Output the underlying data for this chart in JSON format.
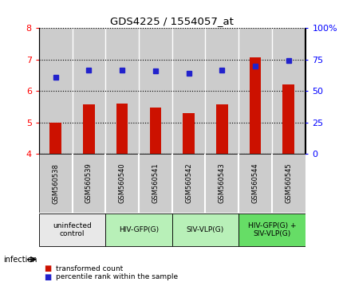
{
  "title": "GDS4225 / 1554057_at",
  "samples": [
    "GSM560538",
    "GSM560539",
    "GSM560540",
    "GSM560541",
    "GSM560542",
    "GSM560543",
    "GSM560544",
    "GSM560545"
  ],
  "bar_values": [
    4.98,
    5.57,
    5.6,
    5.47,
    5.3,
    5.57,
    7.07,
    6.22
  ],
  "dot_values": [
    6.44,
    6.67,
    6.67,
    6.63,
    6.57,
    6.67,
    6.8,
    6.97
  ],
  "ylim_left": [
    4,
    8
  ],
  "ylim_right": [
    0,
    100
  ],
  "yticks_left": [
    4,
    5,
    6,
    7,
    8
  ],
  "yticks_right": [
    0,
    25,
    50,
    75,
    100
  ],
  "ytick_labels_right": [
    "0",
    "25",
    "50",
    "75",
    "100%"
  ],
  "bar_color": "#cc1100",
  "dot_color": "#2222cc",
  "groups": [
    {
      "label": "uninfected\ncontrol",
      "start": 0,
      "end": 2,
      "color": "#e8e8e8"
    },
    {
      "label": "HIV-GFP(G)",
      "start": 2,
      "end": 4,
      "color": "#b8f0b8"
    },
    {
      "label": "SIV-VLP(G)",
      "start": 4,
      "end": 6,
      "color": "#b8f0b8"
    },
    {
      "label": "HIV-GFP(G) +\nSIV-VLP(G)",
      "start": 6,
      "end": 8,
      "color": "#66dd66"
    }
  ],
  "infection_label": "infection",
  "legend_bar_label": "transformed count",
  "legend_dot_label": "percentile rank within the sample",
  "col_bg_color": "#cccccc",
  "grid_color": "black"
}
